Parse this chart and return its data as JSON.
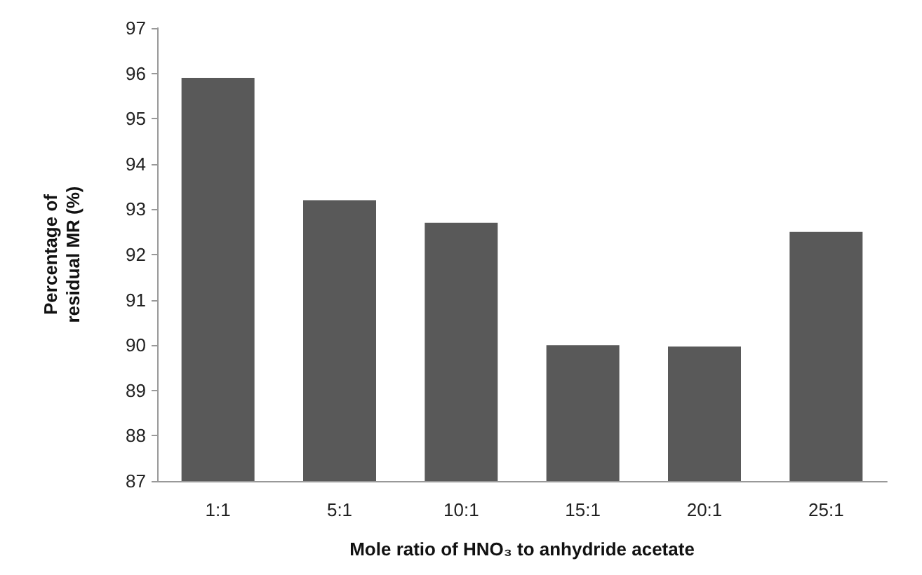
{
  "chart_data": {
    "type": "bar",
    "xlabel": "Mole ratio of HNO₃ to anhydride acetate",
    "ylabel": "Percentage of residual MR (%)",
    "categories": [
      "1:1",
      "5:1",
      "10:1",
      "15:1",
      "20:1",
      "25:1"
    ],
    "values": [
      95.9,
      93.2,
      92.7,
      90.0,
      89.97,
      92.5
    ],
    "color": "#595959",
    "ylim": [
      87,
      97
    ],
    "yticks": [
      87,
      88,
      89,
      90,
      91,
      92,
      93,
      94,
      95,
      96,
      97
    ],
    "grid": false
  }
}
